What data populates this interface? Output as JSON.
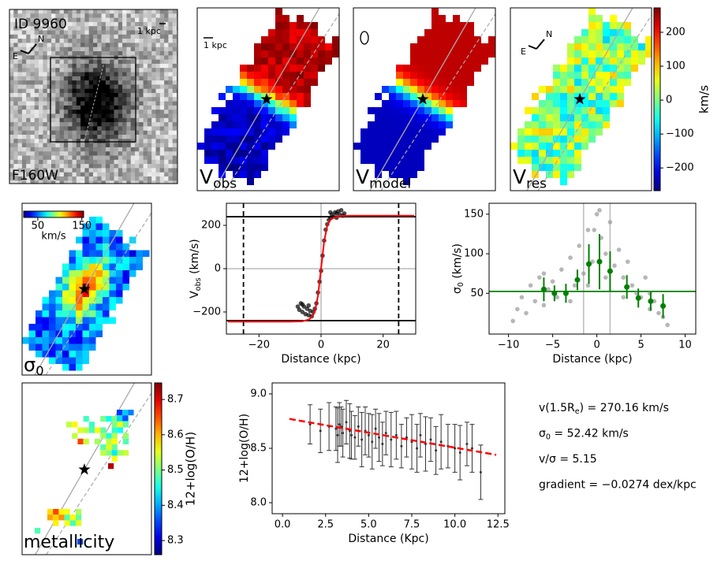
{
  "chart_data": [
    {
      "type": "image",
      "title": "ID 9960",
      "scale_label": "1 kpc",
      "compass": [
        "N",
        "E"
      ],
      "label": "F160W"
    },
    {
      "type": "velmap",
      "scale_label": "1 kpc",
      "label": "V",
      "label_sub": "obs"
    },
    {
      "type": "velmap",
      "label": "V",
      "label_sub": "model"
    },
    {
      "type": "velmap",
      "label": "V",
      "label_sub": "res",
      "compass": [
        "N",
        "E"
      ],
      "colorbar": {
        "lim": [
          -267,
          272
        ],
        "ticks": [
          200,
          100,
          0,
          {
            "value": -100,
            "label": "−100"
          },
          {
            "value": -200,
            "label": "−200"
          }
        ],
        "label": "km/s"
      }
    },
    {
      "type": "sigmamap",
      "label": "σ",
      "label_sub": "0",
      "colorbar": {
        "lim": [
          18,
          154
        ],
        "ticks": [
          50,
          150
        ],
        "label": "km/s"
      }
    },
    {
      "type": "scatter",
      "xlabel": "Distance (kpc)",
      "ylabel": "V",
      "ylabel_sub": "obs",
      "ylabel_unit": " (km/s)",
      "xlim": [
        -30.5,
        30.5
      ],
      "ylim": [
        -302,
        302
      ],
      "xticks": [
        {
          "value": -20,
          "label": "−20"
        },
        0,
        20
      ],
      "yticks": [
        {
          "value": -200,
          "label": "−200"
        },
        0,
        200
      ],
      "xref": [
        0
      ],
      "yref": [
        0
      ],
      "vlines": [
        {
          "value": -25,
          "color": "#000000",
          "dash": true
        },
        {
          "value": 25,
          "color": "#000000",
          "dash": true
        }
      ],
      "hlines": [
        {
          "value": 240,
          "color": "#000000",
          "dash": false
        },
        {
          "value": -240,
          "color": "#000000",
          "dash": false
        }
      ],
      "series": [
        {
          "style": "points",
          "color": "#000000",
          "x": [
            -7.5,
            -7,
            -6.5,
            -6,
            -5.5,
            -5,
            -4.5,
            -4,
            -3.5,
            -3,
            -2.5,
            -2,
            -1.5,
            -1,
            -0.5,
            0,
            0.5,
            1,
            1.5,
            2,
            2.5,
            3,
            3.5,
            4,
            4.5,
            5,
            5.5,
            6,
            6.5,
            7,
            7.5,
            -6,
            -4,
            3,
            5
          ],
          "values": [
            -175,
            -190,
            -160,
            -200,
            -175,
            -210,
            -185,
            -215,
            -195,
            -220,
            -200,
            -185,
            -160,
            -110,
            -60,
            -10,
            60,
            130,
            180,
            205,
            225,
            235,
            250,
            240,
            260,
            255,
            265,
            250,
            270,
            245,
            255,
            -165,
            -170,
            260,
            235
          ]
        },
        {
          "style": "line",
          "color": "#ff0000",
          "x": [
            -30,
            -10,
            -6,
            -4,
            -3,
            -2,
            -1,
            0,
            1,
            2,
            3,
            4,
            6,
            10,
            30
          ],
          "values": [
            -245,
            -245,
            -243,
            -235,
            -225,
            -200,
            -125,
            0,
            125,
            200,
            225,
            235,
            243,
            245,
            245
          ]
        }
      ]
    },
    {
      "type": "scatter",
      "xlabel": "Distance (kpc)",
      "ylabel": "σ",
      "ylabel_sub": "0",
      "ylabel_unit": " (km/s)",
      "xlim": [
        -12.2,
        11.2
      ],
      "ylim": [
        -1.5,
        163.8
      ],
      "xticks": [
        {
          "value": -10,
          "label": "−10"
        },
        {
          "value": -5,
          "label": "−5"
        },
        0,
        5,
        10
      ],
      "yticks": [
        50,
        100,
        150
      ],
      "xref": [
        -1.5,
        1.5
      ],
      "hlines": [
        {
          "value": 52.42,
          "color": "#008000",
          "dash": false
        }
      ],
      "series": [
        {
          "style": "points",
          "color": "#999999",
          "x": [
            -9.5,
            -9,
            -8.5,
            -8,
            -7.5,
            -7,
            -6.5,
            -6,
            -5.5,
            -5,
            -4.5,
            -4,
            -3.5,
            -3,
            -2.5,
            -2,
            -1.5,
            -1,
            -0.5,
            0,
            0.5,
            1,
            1.5,
            2,
            2.5,
            3,
            3.5,
            4,
            4.5,
            5,
            5.5,
            6,
            6.5,
            7,
            7.5,
            8,
            -3,
            -1,
            1,
            3,
            -6,
            6,
            0.3,
            -0.3
          ],
          "values": [
            15,
            30,
            45,
            25,
            60,
            40,
            70,
            35,
            55,
            65,
            45,
            80,
            50,
            95,
            60,
            110,
            75,
            130,
            90,
            150,
            120,
            100,
            140,
            85,
            105,
            70,
            90,
            60,
            50,
            45,
            70,
            30,
            40,
            25,
            20,
            10,
            40,
            60,
            70,
            45,
            75,
            50,
            155,
            130
          ]
        },
        {
          "style": "errorbar",
          "color": "#008000",
          "caps": false,
          "x": [
            -6,
            -4.8,
            -3.5,
            -2.2,
            -0.9,
            0.3,
            1.5,
            3.4,
            4.7,
            6.1,
            7.5
          ],
          "values": [
            55,
            50,
            50,
            67,
            87,
            90,
            78,
            58,
            44,
            40,
            34
          ],
          "errors": [
            15,
            10,
            12,
            13,
            25,
            35,
            25,
            15,
            12,
            12,
            15
          ]
        }
      ]
    },
    {
      "type": "metalmap",
      "label": "metallicity",
      "colorbar": {
        "lim": [
          8.26,
          8.747
        ],
        "ticks": [
          8.7,
          8.6,
          8.5,
          8.4,
          8.3
        ],
        "label": "12+log(O/H)"
      }
    },
    {
      "type": "scatter",
      "xlabel": "Distance (Kpc)",
      "ylabel": "12+log(O/H)",
      "xlim": [
        -0.6,
        12.9
      ],
      "ylim": [
        7.899,
        9.101
      ],
      "xticks": [
        {
          "value": 0,
          "label": "0.0"
        },
        2.5,
        {
          "value": 5,
          "label": "5.0"
        },
        7.5,
        {
          "value": 10,
          "label": "10.0"
        },
        12.5
      ],
      "yticks": [
        {
          "value": 8,
          "label": "8.0"
        },
        8.5,
        {
          "value": 9,
          "label": "9.0"
        }
      ],
      "series": [
        {
          "style": "errorbar",
          "color": "#333333",
          "caps": true,
          "x": [
            1.6,
            2.2,
            2.7,
            3.1,
            3.2,
            3.3,
            3.4,
            3.5,
            3.7,
            3.9,
            4.0,
            4.2,
            4.4,
            4.6,
            4.8,
            5.0,
            5.2,
            5.4,
            5.6,
            5.8,
            6.0,
            6.3,
            6.6,
            6.9,
            7.2,
            7.5,
            7.8,
            8.0,
            8.3,
            8.6,
            8.9,
            9.2,
            9.6,
            10.0,
            10.3,
            10.7,
            11.0,
            11.5
          ],
          "values": [
            8.72,
            8.66,
            8.7,
            8.68,
            8.62,
            8.72,
            8.7,
            8.64,
            8.74,
            8.66,
            8.62,
            8.6,
            8.7,
            8.58,
            8.66,
            8.62,
            8.56,
            8.68,
            8.6,
            8.54,
            8.64,
            8.58,
            8.62,
            8.52,
            8.6,
            8.56,
            8.5,
            8.62,
            8.54,
            8.58,
            8.48,
            8.56,
            8.52,
            8.5,
            8.46,
            8.54,
            8.5,
            8.28
          ],
          "errors": [
            0.18,
            0.2,
            0.22,
            0.2,
            0.25,
            0.2,
            0.18,
            0.22,
            0.2,
            0.25,
            0.22,
            0.2,
            0.18,
            0.25,
            0.22,
            0.2,
            0.25,
            0.18,
            0.22,
            0.2,
            0.2,
            0.25,
            0.22,
            0.2,
            0.18,
            0.25,
            0.22,
            0.2,
            0.25,
            0.2,
            0.22,
            0.25,
            0.2,
            0.22,
            0.25,
            0.2,
            0.22,
            0.25
          ]
        },
        {
          "style": "dashed",
          "color": "#ff0000",
          "x": [
            0.4,
            12.4
          ],
          "values": [
            8.77,
            8.44
          ]
        }
      ]
    },
    {
      "type": "text",
      "lines": [
        {
          "text": "v(1.5R",
          "sub": "e",
          "rest": ") = 270.16 km/s"
        },
        {
          "text": "σ",
          "sub": "0",
          "rest": " = 52.42 km/s"
        },
        {
          "text": "v/σ = 5.15"
        },
        {
          "text": "gradient = −0.0274 dex/kpc"
        }
      ]
    }
  ]
}
